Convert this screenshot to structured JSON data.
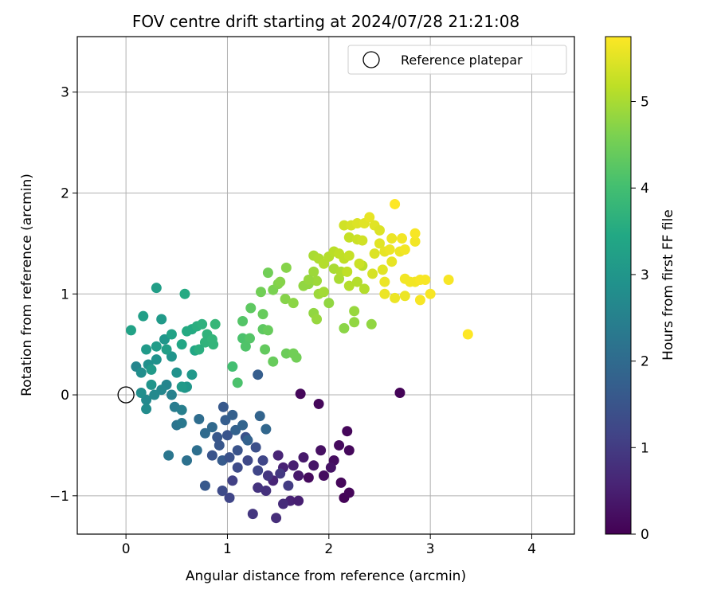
{
  "chart_data": {
    "type": "scatter",
    "title": "FOV centre drift starting at 2024/07/28 21:21:08",
    "xlabel": "Angular distance from reference (arcmin)",
    "ylabel": "Rotation from reference (arcmin)",
    "xlim": [
      -0.48,
      4.42
    ],
    "ylim": [
      -1.38,
      3.55
    ],
    "xticks": [
      0,
      1,
      2,
      3,
      4
    ],
    "yticks": [
      -1,
      0,
      1,
      2,
      3
    ],
    "grid": true,
    "legend": {
      "placement": "top-right",
      "entries": [
        {
          "label": "Reference platepar",
          "marker": "hollow-circle"
        }
      ]
    },
    "reference_point": {
      "x": 0.0,
      "y": 0.0
    },
    "colorbar": {
      "label": "Hours from first FF file",
      "colormap": "viridis",
      "range": [
        0,
        5.75
      ],
      "ticks": [
        0,
        1,
        2,
        3,
        4,
        5
      ]
    },
    "points": [
      [
        1.72,
        0.01,
        0.1
      ],
      [
        1.9,
        -0.09,
        0.1
      ],
      [
        2.7,
        0.02,
        0.05
      ],
      [
        1.8,
        -0.82,
        0.15
      ],
      [
        1.95,
        -0.8,
        0.2
      ],
      [
        2.15,
        -1.02,
        0.05
      ],
      [
        2.2,
        -0.97,
        0.08
      ],
      [
        2.12,
        -0.87,
        0.1
      ],
      [
        2.05,
        -0.65,
        0.2
      ],
      [
        2.1,
        -0.5,
        0.15
      ],
      [
        2.18,
        -0.36,
        0.1
      ],
      [
        2.2,
        -0.55,
        0.12
      ],
      [
        1.92,
        -0.55,
        0.25
      ],
      [
        2.02,
        -0.72,
        0.3
      ],
      [
        1.85,
        -0.7,
        0.35
      ],
      [
        1.75,
        -0.62,
        0.4
      ],
      [
        1.7,
        -0.8,
        0.4
      ],
      [
        1.65,
        -0.7,
        0.5
      ],
      [
        1.55,
        -0.72,
        0.55
      ],
      [
        1.5,
        -0.6,
        0.6
      ],
      [
        1.45,
        -0.85,
        0.6
      ],
      [
        1.62,
        -1.05,
        0.55
      ],
      [
        1.7,
        -1.05,
        0.5
      ],
      [
        1.55,
        -1.08,
        0.7
      ],
      [
        1.48,
        -1.22,
        0.75
      ],
      [
        1.38,
        -0.95,
        0.8
      ],
      [
        1.3,
        -0.92,
        0.85
      ],
      [
        1.4,
        -0.8,
        0.9
      ],
      [
        1.52,
        -0.78,
        0.95
      ],
      [
        1.6,
        -0.9,
        1.0
      ],
      [
        1.25,
        -1.18,
        0.9
      ],
      [
        1.05,
        -0.85,
        1.1
      ],
      [
        1.02,
        -1.02,
        1.2
      ],
      [
        0.95,
        -0.95,
        1.3
      ],
      [
        1.1,
        -0.72,
        1.3
      ],
      [
        1.2,
        -0.65,
        1.25
      ],
      [
        1.3,
        -0.75,
        1.2
      ],
      [
        1.35,
        -0.65,
        1.2
      ],
      [
        1.28,
        -0.52,
        1.4
      ],
      [
        1.18,
        -0.42,
        1.45
      ],
      [
        1.1,
        -0.55,
        1.5
      ],
      [
        1.0,
        -0.4,
        1.5
      ],
      [
        0.9,
        -0.42,
        1.55
      ],
      [
        0.85,
        -0.6,
        1.5
      ],
      [
        0.78,
        -0.9,
        1.6
      ],
      [
        0.95,
        -0.65,
        1.65
      ],
      [
        0.98,
        -0.25,
        1.7
      ],
      [
        1.05,
        -0.2,
        1.75
      ],
      [
        1.08,
        -0.35,
        1.8
      ],
      [
        1.2,
        -0.45,
        1.8
      ],
      [
        1.15,
        -0.3,
        1.85
      ],
      [
        1.32,
        -0.21,
        1.85
      ],
      [
        1.38,
        -0.34,
        1.9
      ],
      [
        0.85,
        -0.32,
        1.95
      ],
      [
        0.78,
        -0.38,
        2.0
      ],
      [
        0.72,
        -0.24,
        2.05
      ],
      [
        0.7,
        -0.55,
        2.1
      ],
      [
        0.6,
        -0.65,
        2.15
      ],
      [
        0.5,
        -0.3,
        2.2
      ],
      [
        0.42,
        -0.6,
        2.25
      ],
      [
        1.3,
        0.2,
        1.7
      ],
      [
        0.96,
        -0.12,
        1.6
      ],
      [
        0.92,
        -0.5,
        1.55
      ],
      [
        1.02,
        -0.62,
        1.45
      ],
      [
        0.55,
        -0.28,
        2.3
      ],
      [
        0.48,
        -0.12,
        2.4
      ],
      [
        0.45,
        0.0,
        2.5
      ],
      [
        0.55,
        -0.15,
        2.45
      ],
      [
        0.4,
        0.1,
        2.6
      ],
      [
        0.35,
        0.05,
        2.65
      ],
      [
        0.28,
        0.0,
        2.7
      ],
      [
        0.2,
        -0.05,
        2.7
      ],
      [
        0.2,
        -0.14,
        2.75
      ],
      [
        0.15,
        0.02,
        2.8
      ],
      [
        0.1,
        0.28,
        2.6
      ],
      [
        0.15,
        0.22,
        2.8
      ],
      [
        0.22,
        0.3,
        2.85
      ],
      [
        0.3,
        0.35,
        2.9
      ],
      [
        0.38,
        0.55,
        3.0
      ],
      [
        0.45,
        0.38,
        2.95
      ],
      [
        0.5,
        0.22,
        2.9
      ],
      [
        0.6,
        0.08,
        3.0
      ],
      [
        0.65,
        0.2,
        3.05
      ],
      [
        0.25,
        0.25,
        3.1
      ],
      [
        0.2,
        0.45,
        3.1
      ],
      [
        0.3,
        0.48,
        3.15
      ],
      [
        0.4,
        0.45,
        3.2
      ],
      [
        0.35,
        0.75,
        3.1
      ],
      [
        0.3,
        1.06,
        3.2
      ],
      [
        0.17,
        0.78,
        3.2
      ],
      [
        0.05,
        0.64,
        3.3
      ],
      [
        0.45,
        0.6,
        3.3
      ],
      [
        0.55,
        0.5,
        3.4
      ],
      [
        0.68,
        0.44,
        3.4
      ],
      [
        0.6,
        0.63,
        3.5
      ],
      [
        0.65,
        0.65,
        3.5
      ],
      [
        0.58,
        1.0,
        3.5
      ],
      [
        0.7,
        0.68,
        3.6
      ],
      [
        0.75,
        0.7,
        3.65
      ],
      [
        0.8,
        0.6,
        3.7
      ],
      [
        0.78,
        0.52,
        3.7
      ],
      [
        0.72,
        0.45,
        3.6
      ],
      [
        0.86,
        0.5,
        3.75
      ],
      [
        0.88,
        0.7,
        3.8
      ],
      [
        0.85,
        0.55,
        3.75
      ],
      [
        0.58,
        0.07,
        3.0
      ],
      [
        0.55,
        0.08,
        3.1
      ],
      [
        0.25,
        0.1,
        2.95
      ],
      [
        1.05,
        0.28,
        4.0
      ],
      [
        1.1,
        0.12,
        4.1
      ],
      [
        1.15,
        0.56,
        4.1
      ],
      [
        1.22,
        0.56,
        4.2
      ],
      [
        1.18,
        0.48,
        4.15
      ],
      [
        1.15,
        0.73,
        4.2
      ],
      [
        1.23,
        0.86,
        4.3
      ],
      [
        1.35,
        0.65,
        4.3
      ],
      [
        1.37,
        0.45,
        4.35
      ],
      [
        1.4,
        0.64,
        4.4
      ],
      [
        1.45,
        0.33,
        4.4
      ],
      [
        1.58,
        0.41,
        4.45
      ],
      [
        1.65,
        0.41,
        4.5
      ],
      [
        1.68,
        0.37,
        4.5
      ],
      [
        1.35,
        0.8,
        4.4
      ],
      [
        1.33,
        1.02,
        4.5
      ],
      [
        1.4,
        1.21,
        4.5
      ],
      [
        1.45,
        1.04,
        4.6
      ],
      [
        1.5,
        1.1,
        4.65
      ],
      [
        1.52,
        1.12,
        4.7
      ],
      [
        1.58,
        1.26,
        4.7
      ],
      [
        1.57,
        0.95,
        4.7
      ],
      [
        1.65,
        0.91,
        4.75
      ],
      [
        1.75,
        1.08,
        4.8
      ],
      [
        1.8,
        1.1,
        4.8
      ],
      [
        1.85,
        0.81,
        4.8
      ],
      [
        1.88,
        0.75,
        4.85
      ],
      [
        1.88,
        1.13,
        4.9
      ],
      [
        1.85,
        1.22,
        4.9
      ],
      [
        1.8,
        1.14,
        4.85
      ],
      [
        1.9,
        1.0,
        4.9
      ],
      [
        1.95,
        1.02,
        4.95
      ],
      [
        2.0,
        0.91,
        4.8
      ],
      [
        2.15,
        0.66,
        4.75
      ],
      [
        2.25,
        0.72,
        4.8
      ],
      [
        2.25,
        0.83,
        4.85
      ],
      [
        2.42,
        0.7,
        4.8
      ],
      [
        2.1,
        1.15,
        5.0
      ],
      [
        2.05,
        1.25,
        5.0
      ],
      [
        2.12,
        1.22,
        5.05
      ],
      [
        2.2,
        1.08,
        5.1
      ],
      [
        2.28,
        1.12,
        5.1
      ],
      [
        2.33,
        1.28,
        5.15
      ],
      [
        2.35,
        1.05,
        5.1
      ],
      [
        1.85,
        1.38,
        5.0
      ],
      [
        1.9,
        1.35,
        5.05
      ],
      [
        1.95,
        1.3,
        5.1
      ],
      [
        2.0,
        1.37,
        5.1
      ],
      [
        2.05,
        1.42,
        5.15
      ],
      [
        2.1,
        1.4,
        5.2
      ],
      [
        2.15,
        1.35,
        5.2
      ],
      [
        2.2,
        1.38,
        5.25
      ],
      [
        2.18,
        1.22,
        5.2
      ],
      [
        2.3,
        1.3,
        5.3
      ],
      [
        2.2,
        1.56,
        5.25
      ],
      [
        2.28,
        1.54,
        5.3
      ],
      [
        2.33,
        1.53,
        5.35
      ],
      [
        2.15,
        1.68,
        5.35
      ],
      [
        2.22,
        1.68,
        5.4
      ],
      [
        2.28,
        1.7,
        5.45
      ],
      [
        2.35,
        1.7,
        5.5
      ],
      [
        2.4,
        1.76,
        5.55
      ],
      [
        2.45,
        1.68,
        5.5
      ],
      [
        2.5,
        1.63,
        5.45
      ],
      [
        2.5,
        1.5,
        5.5
      ],
      [
        2.45,
        1.4,
        5.45
      ],
      [
        2.43,
        1.2,
        5.4
      ],
      [
        2.53,
        1.24,
        5.5
      ],
      [
        2.55,
        1.42,
        5.55
      ],
      [
        2.6,
        1.44,
        5.6
      ],
      [
        2.62,
        1.32,
        5.55
      ],
      [
        2.7,
        1.42,
        5.6
      ],
      [
        2.55,
        1.12,
        5.6
      ],
      [
        2.55,
        1.0,
        5.6
      ],
      [
        2.62,
        1.55,
        5.6
      ],
      [
        2.72,
        1.55,
        5.65
      ],
      [
        2.75,
        1.44,
        5.65
      ],
      [
        2.85,
        1.52,
        5.65
      ],
      [
        2.85,
        1.6,
        5.7
      ],
      [
        2.65,
        1.89,
        5.75
      ],
      [
        2.65,
        0.96,
        5.6
      ],
      [
        2.75,
        0.98,
        5.6
      ],
      [
        2.75,
        1.15,
        5.65
      ],
      [
        2.8,
        1.12,
        5.65
      ],
      [
        2.85,
        1.12,
        5.65
      ],
      [
        2.9,
        1.14,
        5.7
      ],
      [
        2.95,
        1.14,
        5.7
      ],
      [
        2.9,
        0.94,
        5.7
      ],
      [
        3.0,
        1.0,
        5.7
      ],
      [
        3.18,
        1.14,
        5.7
      ],
      [
        3.37,
        0.6,
        5.75
      ]
    ]
  }
}
